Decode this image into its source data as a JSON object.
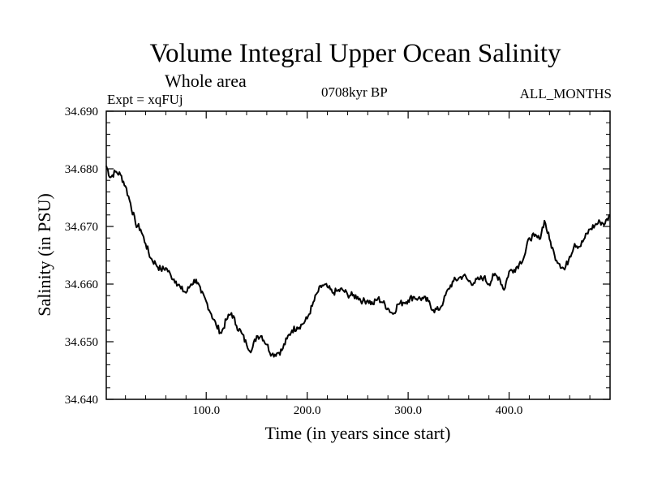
{
  "header": {
    "title": "Volume Integral Upper Ocean Salinity",
    "subtitle": "Whole area",
    "expt": "Expt = xqFUj",
    "period": "0708kyr BP",
    "months": "ALL_MONTHS"
  },
  "chart_data": {
    "type": "line",
    "title": "Volume Integral Upper Ocean Salinity",
    "xlabel": "Time (in years since start)",
    "ylabel": "Salinity (in PSU)",
    "xlim": [
      1,
      500
    ],
    "ylim": [
      34.64,
      34.69
    ],
    "x_ticks": [
      100,
      200,
      300,
      400
    ],
    "x_tick_labels": [
      "100.0",
      "200.0",
      "300.0",
      "400.0"
    ],
    "y_ticks": [
      34.64,
      34.65,
      34.66,
      34.67,
      34.68,
      34.69
    ],
    "y_tick_labels": [
      "34.640",
      "34.650",
      "34.660",
      "34.670",
      "34.680",
      "34.690"
    ],
    "grid": false,
    "series": [
      {
        "name": "Salinity",
        "x": [
          1,
          5,
          10,
          15,
          20,
          25,
          30,
          35,
          40,
          45,
          50,
          55,
          60,
          65,
          70,
          75,
          80,
          85,
          90,
          95,
          100,
          105,
          110,
          115,
          120,
          125,
          130,
          135,
          140,
          145,
          150,
          155,
          160,
          165,
          170,
          175,
          180,
          185,
          190,
          195,
          200,
          205,
          210,
          215,
          220,
          225,
          230,
          235,
          240,
          245,
          250,
          255,
          260,
          265,
          270,
          275,
          280,
          285,
          290,
          295,
          300,
          305,
          310,
          315,
          320,
          325,
          330,
          335,
          340,
          345,
          350,
          355,
          360,
          365,
          370,
          375,
          380,
          385,
          390,
          395,
          400,
          405,
          410,
          415,
          420,
          425,
          430,
          435,
          440,
          445,
          450,
          455,
          460,
          465,
          470,
          475,
          480,
          485,
          490,
          495,
          500
        ],
        "values": [
          34.6805,
          34.6785,
          34.6795,
          34.679,
          34.677,
          34.674,
          34.6705,
          34.6695,
          34.667,
          34.6645,
          34.6635,
          34.6625,
          34.6628,
          34.6615,
          34.6605,
          34.6592,
          34.6585,
          34.66,
          34.6608,
          34.6585,
          34.657,
          34.6548,
          34.6528,
          34.6515,
          34.6538,
          34.655,
          34.6528,
          34.6515,
          34.6495,
          34.6485,
          34.651,
          34.651,
          34.6495,
          34.6478,
          34.648,
          34.6485,
          34.6505,
          34.652,
          34.6525,
          34.653,
          34.654,
          34.6562,
          34.6585,
          34.6598,
          34.6595,
          34.6585,
          34.6588,
          34.659,
          34.6582,
          34.658,
          34.6578,
          34.657,
          34.6572,
          34.6565,
          34.6575,
          34.6568,
          34.6558,
          34.6548,
          34.6565,
          34.6568,
          34.6572,
          34.6578,
          34.6575,
          34.6575,
          34.657,
          34.6555,
          34.6555,
          34.657,
          34.6592,
          34.6605,
          34.661,
          34.6615,
          34.6605,
          34.6602,
          34.6608,
          34.6612,
          34.66,
          34.6615,
          34.6612,
          34.659,
          34.6622,
          34.6625,
          34.6635,
          34.6648,
          34.668,
          34.6683,
          34.6678,
          34.671,
          34.6678,
          34.665,
          34.6635,
          34.6625,
          34.6648,
          34.667,
          34.6665,
          34.668,
          34.6695,
          34.6702,
          34.6708,
          34.6705,
          34.672
        ]
      }
    ]
  }
}
